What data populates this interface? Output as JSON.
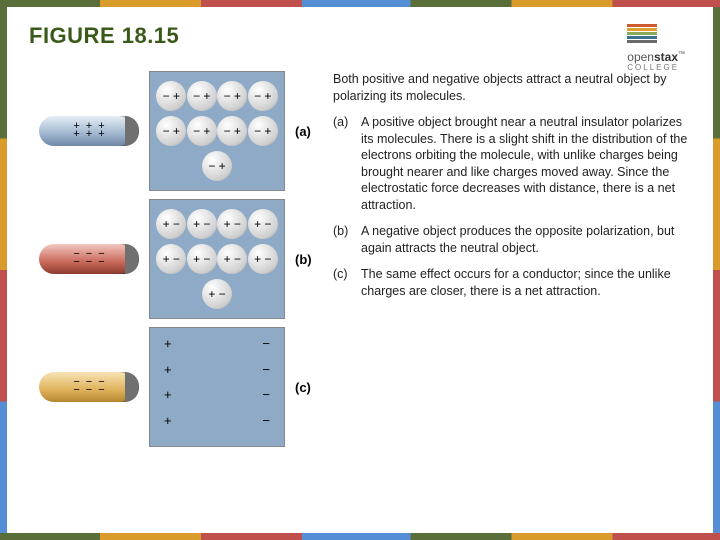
{
  "title": "FIGURE 18.15",
  "logo": {
    "brand": "open",
    "brand2": "stax",
    "sub": "COLLEGE",
    "tm": "™"
  },
  "intro": "Both positive and negative objects attract a neutral object by polarizing its molecules.",
  "items": {
    "a": {
      "label": "(a)",
      "body": "A positive object brought near a neutral insulator polarizes its molecules. There is a slight shift in the distribution of the electrons orbiting the molecule, with unlike charges being brought nearer and like charges moved away. Since the electrostatic force decreases with distance, there is a net attraction."
    },
    "b": {
      "label": "(b)",
      "body": "A negative object produces the opposite polarization, but again attracts the neutral object."
    },
    "c": {
      "label": "(c)",
      "body": "The same effect occurs for a conductor; since the unlike charges are closer, there is a net attraction."
    }
  },
  "fig": {
    "labels": {
      "a": "(a)",
      "b": "(b)",
      "c": "(c)"
    },
    "rods": {
      "a": {
        "sign": "+",
        "type": "blue"
      },
      "b": {
        "sign": "−",
        "type": "red"
      },
      "c": {
        "sign": "−",
        "type": "gold"
      }
    },
    "mol_a": "− +",
    "mol_b": "+ −",
    "panel_c_left": "+",
    "panel_c_right": "−"
  },
  "colors": {
    "panel_bg": "#8faac6",
    "accent_title": "#3a5a1a"
  }
}
